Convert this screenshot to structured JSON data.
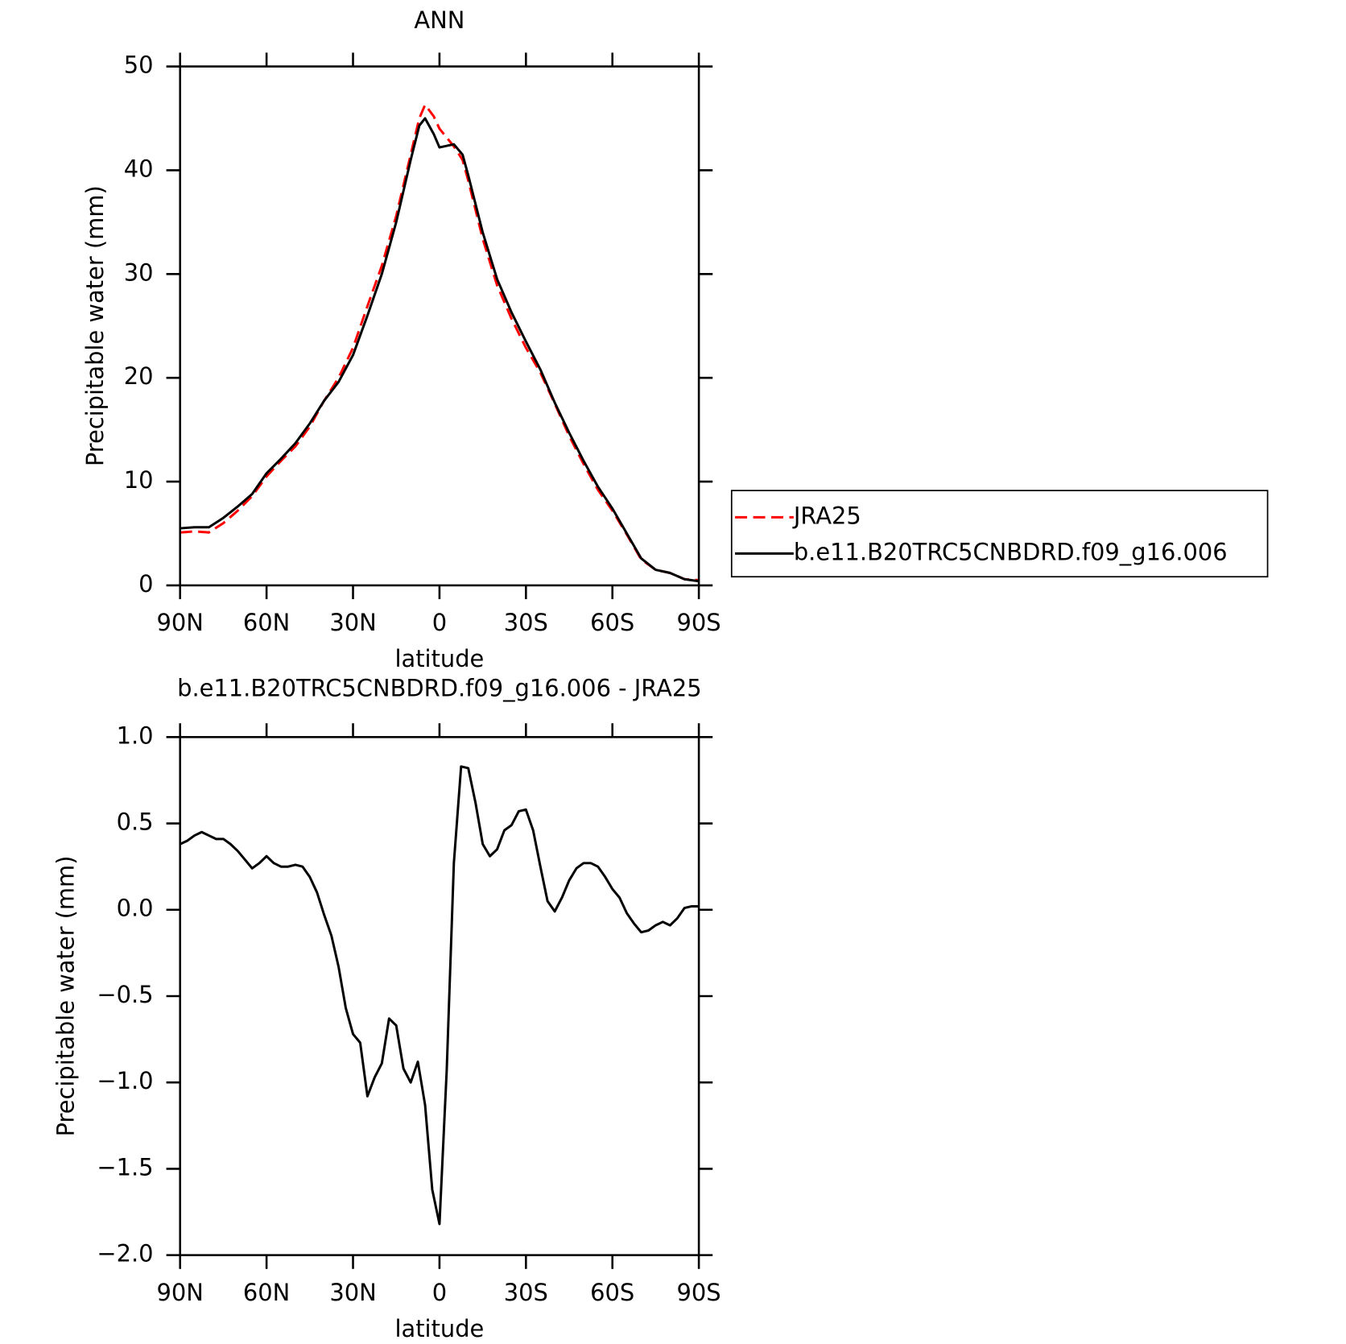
{
  "chart_data": [
    {
      "type": "line",
      "title": "ANN",
      "xlabel": "latitude",
      "ylabel": "Precipitable water (mm)",
      "x": [
        90,
        85,
        80,
        75,
        70,
        65,
        60,
        55,
        50,
        45,
        40,
        35,
        30,
        25,
        20,
        15,
        10,
        7,
        5,
        2,
        0,
        -5,
        -8,
        -10,
        -15,
        -20,
        -25,
        -30,
        -35,
        -40,
        -45,
        -50,
        -55,
        -60,
        -65,
        -70,
        -75,
        -80,
        -85,
        -90
      ],
      "series": [
        {
          "name": "JRA25",
          "color": "#ff0000",
          "style": "dashed",
          "values": [
            5.1,
            5.2,
            5.1,
            6.0,
            7.2,
            8.6,
            10.5,
            12.0,
            13.4,
            15.3,
            17.8,
            20.0,
            22.9,
            26.9,
            30.8,
            35.6,
            41.5,
            45.0,
            46.3,
            45.2,
            44.0,
            42.3,
            41.0,
            39.0,
            33.4,
            28.9,
            25.7,
            22.9,
            20.5,
            17.5,
            14.4,
            11.7,
            9.2,
            7.2,
            4.9,
            2.5,
            1.5,
            1.2,
            0.6,
            0.5
          ]
        },
        {
          "name": "b.e11.B20TRC5CNBDRD.f09_g16.006",
          "color": "#000000",
          "style": "solid",
          "values": [
            5.5,
            5.6,
            5.6,
            6.5,
            7.6,
            8.8,
            10.8,
            12.2,
            13.7,
            15.6,
            17.8,
            19.6,
            22.2,
            26.0,
            30.0,
            35.0,
            41.0,
            44.3,
            45.0,
            43.5,
            42.2,
            42.5,
            41.5,
            39.5,
            34.0,
            29.5,
            26.3,
            23.5,
            20.8,
            17.6,
            14.7,
            12.0,
            9.5,
            7.4,
            5.0,
            2.6,
            1.5,
            1.2,
            0.6,
            0.4
          ]
        }
      ],
      "xlim": [
        90,
        -90
      ],
      "xticks": [
        {
          "value": 90,
          "label": "90N"
        },
        {
          "value": 60,
          "label": "60N"
        },
        {
          "value": 30,
          "label": "30N"
        },
        0,
        {
          "value": -30,
          "label": "30S"
        },
        {
          "value": -60,
          "label": "60S"
        },
        {
          "value": -90,
          "label": "90S"
        }
      ],
      "ylim": [
        0,
        50
      ],
      "yticks": [
        0,
        10,
        20,
        30,
        40,
        50
      ],
      "legend": "right"
    },
    {
      "type": "line",
      "title": "b.e11.B20TRC5CNBDRD.f09_g16.006 - JRA25",
      "xlabel": "latitude",
      "ylabel": "Precipitable water (mm)",
      "x": [
        90,
        87.5,
        85,
        82.5,
        80,
        77.5,
        75,
        72.5,
        70,
        67.5,
        65,
        62.5,
        60,
        57.5,
        55,
        52.5,
        50,
        47.5,
        45,
        42.5,
        40,
        37.5,
        35,
        32.5,
        30,
        27.5,
        25,
        22.5,
        20,
        17.5,
        15,
        12.5,
        10,
        7.5,
        5,
        2.5,
        0,
        -2.5,
        -5,
        -7.5,
        -10,
        -12.5,
        -15,
        -17.5,
        -20,
        -22.5,
        -25,
        -27.5,
        -30,
        -32.5,
        -35,
        -37.5,
        -40,
        -42.5,
        -45,
        -47.5,
        -50,
        -52.5,
        -55,
        -57.5,
        -60,
        -62.5,
        -65,
        -67.5,
        -70,
        -72.5,
        -75,
        -77.5,
        -80,
        -82.5,
        -85,
        -87.5,
        -90
      ],
      "series": [
        {
          "color": "#000000",
          "style": "solid",
          "values": [
            0.38,
            0.4,
            0.43,
            0.45,
            0.43,
            0.41,
            0.41,
            0.38,
            0.34,
            0.29,
            0.24,
            0.27,
            0.31,
            0.27,
            0.25,
            0.25,
            0.26,
            0.25,
            0.19,
            0.1,
            -0.03,
            -0.15,
            -0.33,
            -0.57,
            -0.72,
            -0.77,
            -1.08,
            -0.97,
            -0.89,
            -0.63,
            -0.67,
            -0.92,
            -1.0,
            -0.88,
            -1.13,
            -1.62,
            -1.82,
            -0.93,
            0.27,
            0.83,
            0.82,
            0.62,
            0.38,
            0.31,
            0.35,
            0.46,
            0.49,
            0.57,
            0.58,
            0.46,
            0.25,
            0.05,
            -0.01,
            0.07,
            0.17,
            0.24,
            0.27,
            0.27,
            0.25,
            0.19,
            0.12,
            0.07,
            -0.02,
            -0.08,
            -0.13,
            -0.12,
            -0.09,
            -0.07,
            -0.09,
            -0.05,
            0.01,
            0.02,
            0.02
          ]
        }
      ],
      "xlim": [
        90,
        -90
      ],
      "xticks": [
        {
          "value": 90,
          "label": "90N"
        },
        {
          "value": 60,
          "label": "60N"
        },
        {
          "value": 30,
          "label": "30N"
        },
        0,
        {
          "value": -30,
          "label": "30S"
        },
        {
          "value": -60,
          "label": "60S"
        },
        {
          "value": -90,
          "label": "90S"
        }
      ],
      "ylim": [
        -2,
        1
      ],
      "yticks": [
        {
          "value": -2,
          "label": "−2.0"
        },
        {
          "value": -1.5,
          "label": "−1.5"
        },
        {
          "value": -1,
          "label": "−1.0"
        },
        {
          "value": -0.5,
          "label": "−0.5"
        },
        {
          "value": 0,
          "label": "0.0"
        },
        0.5,
        {
          "value": 1,
          "label": "1.0"
        }
      ]
    }
  ]
}
